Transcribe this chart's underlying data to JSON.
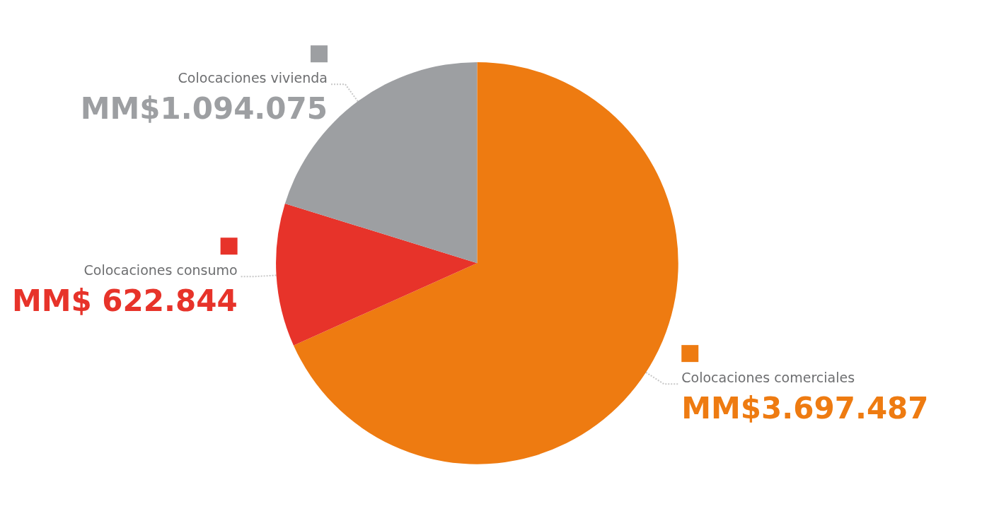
{
  "chart_data": {
    "type": "pie",
    "categories": [
      "Colocaciones comerciales",
      "Colocaciones consumo",
      "Colocaciones vivienda"
    ],
    "values": [
      3697487,
      622844,
      1094075
    ],
    "colors": [
      "#ee7b11",
      "#e7332a",
      "#9d9fa2"
    ],
    "value_labels": [
      "MM$3.697.487",
      "MM$ 622.844",
      "MM$1.094.075"
    ],
    "legend": "left"
  }
}
